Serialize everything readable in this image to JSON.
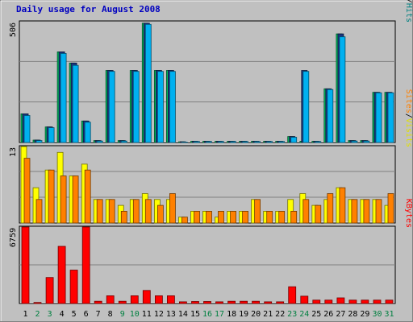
{
  "chart_data": {
    "type": "bar",
    "title": "Daily usage for August 2008",
    "categories": [
      "1",
      "2",
      "3",
      "4",
      "5",
      "6",
      "7",
      "8",
      "9",
      "10",
      "11",
      "12",
      "13",
      "14",
      "15",
      "16",
      "17",
      "18",
      "19",
      "20",
      "21",
      "22",
      "23",
      "24",
      "25",
      "26",
      "27",
      "28",
      "29",
      "30",
      "31"
    ],
    "weekend_days": [
      2,
      3,
      9,
      10,
      16,
      17,
      23,
      24,
      30,
      31
    ],
    "panels": [
      {
        "id": "usage",
        "ymax_label": "506",
        "ylim": [
          0,
          506
        ],
        "legend": [
          {
            "text": "Pages",
            "color": "#00b0f0"
          },
          {
            "text": "/",
            "color": "#000000"
          },
          {
            "text": "Files",
            "color": "#0040c0"
          },
          {
            "text": "/",
            "color": "#000000"
          },
          {
            "text": "Hits",
            "color": "#008080"
          }
        ],
        "series": [
          {
            "name": "Hits",
            "color": "#00c060",
            "values": [
              120,
              10,
              65,
              380,
              333,
              90,
              8,
              302,
              8,
              302,
              500,
              302,
              302,
              3,
              5,
              5,
              5,
              5,
              5,
              5,
              5,
              5,
              25,
              5,
              5,
              225,
              455,
              8,
              8,
              210,
              210
            ]
          },
          {
            "name": "Files",
            "color": "#1a3580",
            "values": [
              120,
              10,
              65,
              380,
              333,
              90,
              8,
              302,
              8,
              302,
              500,
              302,
              302,
              3,
              5,
              5,
              5,
              5,
              5,
              5,
              5,
              5,
              25,
              302,
              5,
              225,
              455,
              8,
              8,
              210,
              210
            ]
          },
          {
            "name": "Pages",
            "color": "#00b0f0",
            "values": [
              113,
              8,
              62,
              373,
              323,
              85,
              6,
              298,
              6,
              298,
              495,
              298,
              298,
              2,
              4,
              4,
              4,
              4,
              4,
              4,
              4,
              4,
              22,
              298,
              4,
              222,
              443,
              6,
              6,
              208,
              208
            ]
          }
        ]
      },
      {
        "id": "visits",
        "ymax_label": "13",
        "ylim": [
          0,
          13
        ],
        "legend": [
          {
            "text": "Sites",
            "color": "#ff8000"
          },
          {
            "text": "/",
            "color": "#000000"
          },
          {
            "text": "Visits",
            "color": "#e0e000"
          }
        ],
        "series": [
          {
            "name": "Visits",
            "color": "#ffff00",
            "values": [
              13,
              6,
              9,
              12,
              8,
              10,
              4,
              4,
              3,
              4,
              5,
              4,
              4,
              1,
              2,
              2,
              1,
              2,
              2,
              4,
              2,
              2,
              4,
              5,
              3,
              4,
              6,
              4,
              4,
              4,
              3
            ]
          },
          {
            "name": "Sites",
            "color": "#ff8000",
            "values": [
              11,
              4,
              9,
              8,
              8,
              9,
              4,
              4,
              2,
              4,
              4,
              3,
              5,
              1,
              2,
              2,
              2,
              2,
              2,
              4,
              2,
              2,
              2,
              4,
              3,
              5,
              6,
              4,
              4,
              4,
              5
            ]
          }
        ]
      },
      {
        "id": "kbytes",
        "ymax_label": "6759",
        "ylim": [
          0,
          6759
        ],
        "legend": [
          {
            "text": "KBytes",
            "color": "#ff0000"
          }
        ],
        "series": [
          {
            "name": "KBytes",
            "color": "#ff0000",
            "values": [
              6759,
              90,
              2300,
              5050,
              2950,
              6759,
              200,
              680,
              200,
              680,
              1150,
              680,
              680,
              150,
              180,
              180,
              150,
              200,
              200,
              200,
              150,
              150,
              1480,
              650,
              300,
              300,
              500,
              300,
              300,
              300,
              300
            ]
          }
        ]
      }
    ]
  }
}
